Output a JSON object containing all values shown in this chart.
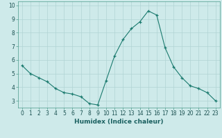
{
  "x": [
    0,
    1,
    2,
    3,
    4,
    5,
    6,
    7,
    8,
    9,
    10,
    11,
    12,
    13,
    14,
    15,
    16,
    17,
    18,
    19,
    20,
    21,
    22,
    23
  ],
  "y": [
    5.6,
    5.0,
    4.7,
    4.4,
    3.9,
    3.6,
    3.5,
    3.3,
    2.8,
    2.7,
    4.5,
    6.3,
    7.5,
    8.3,
    8.8,
    9.6,
    9.3,
    6.9,
    5.5,
    4.7,
    4.1,
    3.9,
    3.6,
    3.0
  ],
  "line_color": "#1a7a6e",
  "marker": "+",
  "marker_size": 3,
  "background_color": "#ceeaea",
  "grid_color": "#b0d4d4",
  "xlabel": "Humidex (Indice chaleur)",
  "xlim": [
    -0.5,
    23.5
  ],
  "ylim": [
    2.5,
    10.3
  ],
  "yticks": [
    3,
    4,
    5,
    6,
    7,
    8,
    9,
    10
  ],
  "xticks": [
    0,
    1,
    2,
    3,
    4,
    5,
    6,
    7,
    8,
    9,
    10,
    11,
    12,
    13,
    14,
    15,
    16,
    17,
    18,
    19,
    20,
    21,
    22,
    23
  ],
  "label_fontsize": 6.5,
  "tick_fontsize": 5.5
}
